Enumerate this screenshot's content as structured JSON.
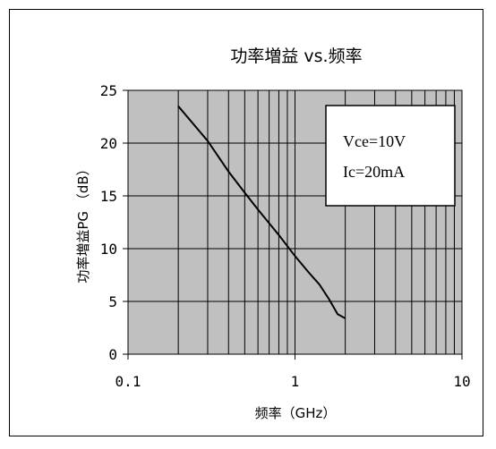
{
  "chart_data": {
    "type": "line",
    "title": "功率増益 vs.频率",
    "xlabel": "频率（GHz）",
    "ylabel": "功率増益PG （dB）",
    "xscale": "log",
    "xlim": [
      0.1,
      10
    ],
    "ylim": [
      0,
      25
    ],
    "x_tick_labels": [
      "0.1",
      "1",
      "10"
    ],
    "y_tick_labels": [
      "0",
      "5",
      "10",
      "15",
      "20",
      "25"
    ],
    "grid": true,
    "plot_background": "#c0c0c0",
    "series": [
      {
        "color": "#000000",
        "x": [
          0.2,
          0.3,
          0.4,
          0.5,
          0.6,
          0.8,
          1.0,
          1.2,
          1.4,
          1.6,
          1.8,
          2.0
        ],
        "y": [
          23.5,
          20.2,
          17.3,
          15.3,
          13.7,
          11.3,
          9.3,
          7.8,
          6.6,
          5.2,
          3.8,
          3.4
        ]
      }
    ],
    "annotations": [
      "Vce=10V",
      "Ic=20mA"
    ]
  }
}
